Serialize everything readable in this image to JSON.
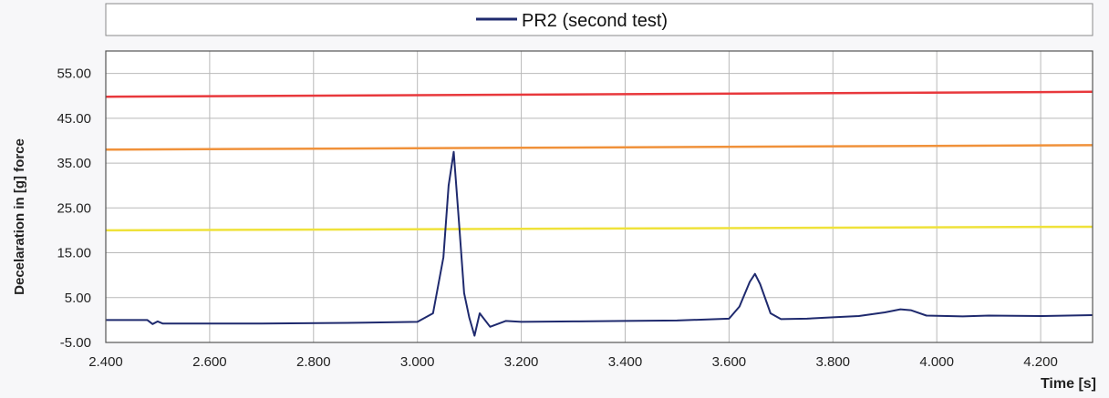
{
  "chart_data": {
    "type": "line",
    "xlabel": "Time [s]",
    "ylabel": "Decelaration in [g]  force",
    "xlim": [
      2.4,
      4.3
    ],
    "ylim": [
      -5,
      60
    ],
    "x_ticks": [
      "2.400",
      "2.600",
      "2.800",
      "3.000",
      "3.200",
      "3.400",
      "3.600",
      "3.800",
      "4.000",
      "4.200"
    ],
    "y_ticks": [
      "-5.00",
      "5.00",
      "15.00",
      "25.00",
      "35.00",
      "45.00",
      "55.00"
    ],
    "grid": true,
    "legend_position": "top",
    "series": [
      {
        "name": "PR2  (second test)",
        "color": "#1f2a6e",
        "x": [
          2.4,
          2.48,
          2.49,
          2.5,
          2.51,
          2.55,
          2.7,
          2.9,
          3.0,
          3.03,
          3.05,
          3.06,
          3.07,
          3.08,
          3.09,
          3.1,
          3.11,
          3.12,
          3.14,
          3.17,
          3.2,
          3.3,
          3.4,
          3.5,
          3.6,
          3.62,
          3.64,
          3.65,
          3.66,
          3.68,
          3.7,
          3.75,
          3.8,
          3.85,
          3.9,
          3.93,
          3.95,
          3.98,
          4.05,
          4.1,
          4.2,
          4.3
        ],
        "y": [
          0.0,
          0.0,
          -0.9,
          -0.3,
          -0.8,
          -0.8,
          -0.8,
          -0.6,
          -0.4,
          1.5,
          14.0,
          30.0,
          37.5,
          22.0,
          6.0,
          0.5,
          -3.5,
          1.5,
          -1.5,
          -0.2,
          -0.4,
          -0.3,
          -0.2,
          -0.1,
          0.3,
          3.0,
          8.5,
          10.3,
          8.0,
          1.5,
          0.2,
          0.3,
          0.6,
          0.9,
          1.7,
          2.4,
          2.2,
          1.0,
          0.8,
          1.0,
          0.9,
          1.1
        ]
      }
    ],
    "threshold_lines": [
      {
        "color": "#e8383c",
        "y_start": 49.8,
        "y_end": 50.9
      },
      {
        "color": "#f0913a",
        "y_start": 38.0,
        "y_end": 39.0
      },
      {
        "color": "#efe23a",
        "y_start": 20.0,
        "y_end": 20.8
      }
    ]
  }
}
